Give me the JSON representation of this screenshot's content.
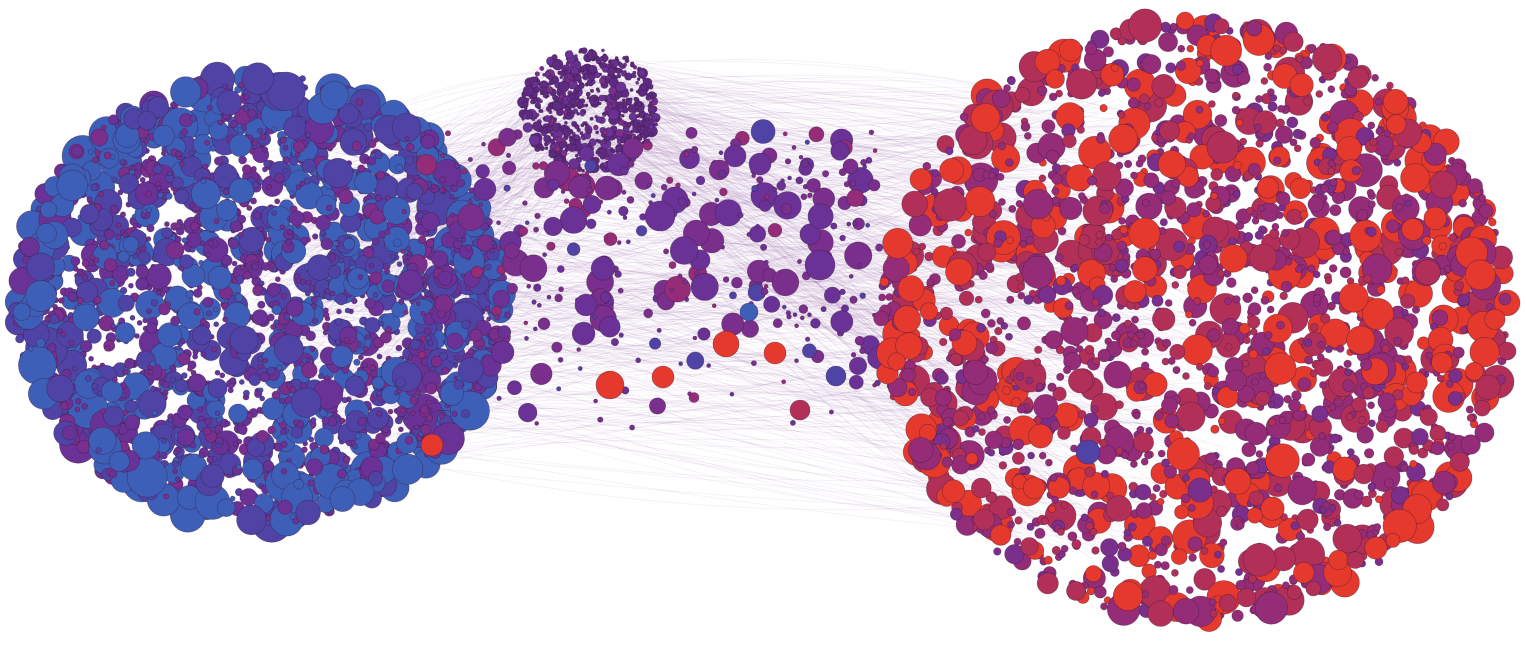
{
  "diagram": {
    "type": "network-graph",
    "background": "#ffffff",
    "edge_color": "#8a4a9e",
    "palette": {
      "blue": "#3d5fb8",
      "blue_violet": "#5043a6",
      "violet": "#6a3296",
      "purple": "#7a2f8c",
      "magenta": "#952c78",
      "red_magenta": "#b23058",
      "red": "#e4392c"
    },
    "clusters": [
      {
        "id": "left-cluster",
        "dominant_colors": [
          "#6a3296",
          "#3d5fb8"
        ],
        "shape": "dense-disc"
      },
      {
        "id": "top-center-cluster",
        "dominant_colors": [
          "#5e2a82",
          "#6a3296"
        ],
        "shape": "small-dense-disc"
      },
      {
        "id": "bridge-nodes",
        "dominant_colors": [
          "#7a2f8c",
          "#e4392c"
        ],
        "shape": "sparse"
      },
      {
        "id": "right-cluster",
        "dominant_colors": [
          "#952c78",
          "#e4392c"
        ],
        "shape": "dense-disc"
      }
    ]
  }
}
